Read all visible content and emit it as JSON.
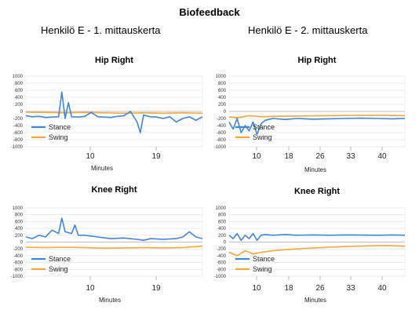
{
  "title": "Biofeedback",
  "columns": [
    "Henkilö E - 1. mittauskerta",
    "Henkilö E - 2. mittauskerta"
  ],
  "colors": {
    "stance": "#3f86de",
    "swing": "#f4a73a",
    "grid": "#dddddd"
  },
  "chart_data": [
    {
      "type": "line",
      "title": "Hip Right",
      "xlabel": "Minutes",
      "x_tick_labels": [
        "10",
        "19"
      ],
      "xlim": [
        1,
        28
      ],
      "ylim": [
        -1000,
        1000
      ],
      "y_ticks": [
        1000,
        800,
        600,
        400,
        200,
        0,
        -200,
        -400,
        -600,
        -800,
        -1000
      ],
      "legend_position": "bottom-left",
      "grid": true,
      "series": [
        {
          "name": "Stance",
          "color": "#3f86de",
          "x": [
            1,
            2,
            3,
            4,
            5,
            6,
            6.5,
            7,
            7.5,
            8,
            9,
            10,
            11,
            12,
            13,
            14,
            15,
            16,
            17,
            18,
            18.5,
            19,
            20,
            21,
            22,
            23,
            24,
            25,
            26,
            27,
            28
          ],
          "y": [
            -120,
            -150,
            -140,
            -170,
            -160,
            -150,
            550,
            -200,
            250,
            -150,
            -160,
            -140,
            -30,
            -150,
            -160,
            -170,
            -140,
            -120,
            0,
            -300,
            -600,
            -100,
            -150,
            -160,
            -200,
            -150,
            -300,
            -200,
            -150,
            -250,
            -150
          ]
        },
        {
          "name": "Swing",
          "color": "#f4a73a",
          "x": [
            1,
            4,
            7,
            10,
            13,
            16,
            19,
            22,
            25,
            28
          ],
          "y": [
            -20,
            -30,
            -40,
            -30,
            -40,
            -50,
            -40,
            -50,
            -40,
            -50
          ]
        }
      ]
    },
    {
      "type": "line",
      "title": "Hip Right",
      "xlabel": "Minutes",
      "x_tick_labels": [
        "10",
        "18",
        "26",
        "33",
        "40"
      ],
      "xlim": [
        1,
        45
      ],
      "ylim": [
        -1000,
        1000
      ],
      "y_ticks": [
        1000,
        800,
        600,
        400,
        200,
        0,
        -200,
        -400,
        -600,
        -800,
        -1000
      ],
      "legend_position": "bottom-left",
      "grid": true,
      "series": [
        {
          "name": "Stance",
          "color": "#3f86de",
          "x": [
            1,
            2,
            3,
            4,
            5,
            6,
            7,
            8,
            9,
            10,
            12,
            15,
            18,
            22,
            26,
            30,
            34,
            38,
            42,
            45
          ],
          "y": [
            -300,
            -500,
            -200,
            -600,
            -400,
            -550,
            -300,
            -650,
            -350,
            -250,
            -200,
            -230,
            -200,
            -220,
            -210,
            -200,
            -190,
            -200,
            -210,
            -200
          ]
        },
        {
          "name": "Swing",
          "color": "#f4a73a",
          "x": [
            1,
            3,
            6,
            9,
            12,
            18,
            26,
            33,
            40,
            45
          ],
          "y": [
            -150,
            -180,
            -120,
            -150,
            -140,
            -130,
            -120,
            -110,
            -110,
            -120
          ]
        }
      ]
    },
    {
      "type": "line",
      "title": "Knee Right",
      "xlabel": "Minutes",
      "x_tick_labels": [
        "10",
        "19"
      ],
      "xlim": [
        1,
        28
      ],
      "ylim": [
        -1000,
        1000
      ],
      "y_ticks": [
        1000,
        800,
        600,
        400,
        200,
        0,
        -200,
        -400,
        -600,
        -800,
        -1000
      ],
      "legend_position": "bottom-left",
      "grid": true,
      "series": [
        {
          "name": "Stance",
          "color": "#3f86de",
          "x": [
            1,
            2,
            3,
            4,
            5,
            6,
            6.5,
            7,
            8,
            8.5,
            9,
            10,
            12,
            14,
            16,
            18,
            19,
            20,
            22,
            24,
            25,
            26,
            27,
            28
          ],
          "y": [
            150,
            100,
            200,
            150,
            350,
            250,
            700,
            300,
            250,
            500,
            200,
            200,
            150,
            100,
            120,
            80,
            50,
            100,
            80,
            100,
            150,
            300,
            150,
            100
          ]
        },
        {
          "name": "Swing",
          "color": "#f4a73a",
          "x": [
            1,
            4,
            7,
            10,
            13,
            16,
            19,
            22,
            25,
            28
          ],
          "y": [
            -150,
            -160,
            -150,
            -160,
            -180,
            -170,
            -160,
            -170,
            -160,
            -120
          ]
        }
      ]
    },
    {
      "type": "line",
      "title": "Knee Right",
      "xlabel": "Minutes",
      "x_tick_labels": [
        "10",
        "18",
        "26",
        "33",
        "40"
      ],
      "xlim": [
        1,
        45
      ],
      "ylim": [
        -1000,
        1000
      ],
      "y_ticks": [
        1000,
        800,
        600,
        400,
        200,
        0,
        -200,
        -400,
        -600,
        -800,
        -1000
      ],
      "legend_position": "bottom-left",
      "grid": true,
      "series": [
        {
          "name": "Stance",
          "color": "#3f86de",
          "x": [
            1,
            2,
            3,
            4,
            5,
            6,
            7,
            8,
            9,
            10,
            12,
            15,
            18,
            22,
            26,
            30,
            34,
            38,
            42,
            45
          ],
          "y": [
            200,
            100,
            250,
            50,
            200,
            100,
            250,
            50,
            200,
            220,
            200,
            220,
            200,
            210,
            200,
            210,
            205,
            200,
            210,
            200
          ]
        },
        {
          "name": "Swing",
          "color": "#f4a73a",
          "x": [
            1,
            3,
            5,
            7,
            9,
            12,
            18,
            26,
            33,
            40,
            45
          ],
          "y": [
            -300,
            -400,
            -250,
            -350,
            -300,
            -250,
            -200,
            -150,
            -120,
            -100,
            -120
          ]
        }
      ]
    }
  ]
}
